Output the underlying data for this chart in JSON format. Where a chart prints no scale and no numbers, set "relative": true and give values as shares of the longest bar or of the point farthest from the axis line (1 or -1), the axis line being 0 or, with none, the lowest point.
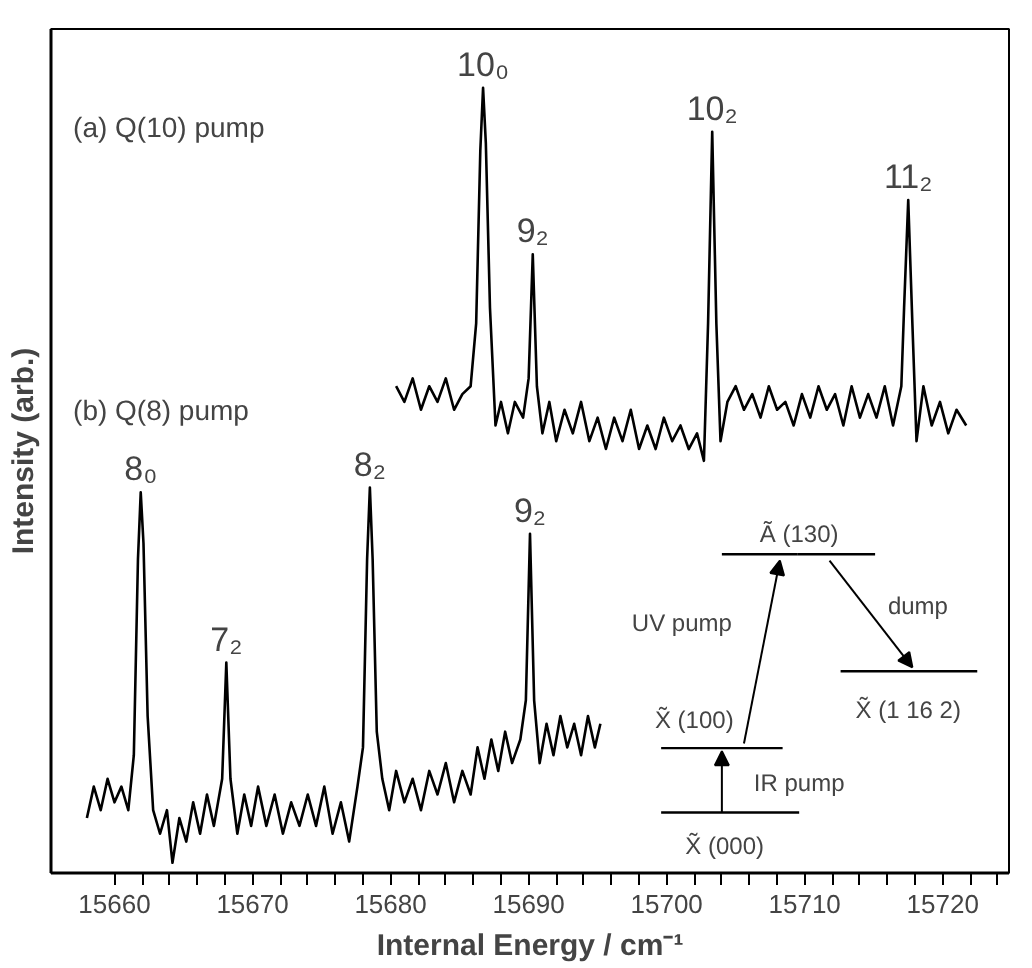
{
  "chart_data": {
    "type": "line",
    "relative": true,
    "xlabel": "Internal Energy / cm⁻¹",
    "ylabel": "Intensity (arb.)",
    "xlim": [
      15655.4,
      15724.8
    ],
    "xticks": [
      15660,
      {
        "value": 15662,
        "label": null
      },
      {
        "value": 15664,
        "label": null
      },
      {
        "value": 15666,
        "label": null
      },
      {
        "value": 15668,
        "label": null
      },
      15670,
      {
        "value": 15672,
        "label": null
      },
      {
        "value": 15674,
        "label": null
      },
      {
        "value": 15676,
        "label": null
      },
      {
        "value": 15678,
        "label": null
      },
      15680,
      {
        "value": 15682,
        "label": null
      },
      {
        "value": 15684,
        "label": null
      },
      {
        "value": 15686,
        "label": null
      },
      {
        "value": 15688,
        "label": null
      },
      15690,
      {
        "value": 15692,
        "label": null
      },
      {
        "value": 15694,
        "label": null
      },
      {
        "value": 15696,
        "label": null
      },
      {
        "value": 15698,
        "label": null
      },
      15700,
      {
        "value": 15702,
        "label": null
      },
      {
        "value": 15704,
        "label": null
      },
      {
        "value": 15706,
        "label": null
      },
      {
        "value": 15708,
        "label": null
      },
      15710,
      {
        "value": 15712,
        "label": null
      },
      {
        "value": 15714,
        "label": null
      },
      {
        "value": 15716,
        "label": null
      },
      {
        "value": 15718,
        "label": null
      },
      15720,
      {
        "value": 15722,
        "label": null
      },
      {
        "value": 15724,
        "label": null
      }
    ],
    "tick_labels": "x",
    "grid": false,
    "marker": "none",
    "line_style": "solid",
    "series": [
      {
        "color": "#000000",
        "x": [
          15680.4,
          15681,
          15681.6,
          15682.2,
          15682.8,
          15683.4,
          15684,
          15684.6,
          15685.2,
          15685.8,
          15686.2,
          15686.5,
          15686.7,
          15686.9,
          15687.2,
          15687.6,
          15688,
          15688.5,
          15689,
          15689.6,
          15690,
          15690.3,
          15690.6,
          15691,
          15691.5,
          15692,
          15692.6,
          15693.2,
          15693.8,
          15694.4,
          15695,
          15695.6,
          15696.2,
          15696.8,
          15697.4,
          15698,
          15698.6,
          15699.2,
          15699.8,
          15700.4,
          15701,
          15701.6,
          15702.2,
          15702.7,
          15703,
          15703.3,
          15703.6,
          15703.9,
          15704.4,
          15705,
          15705.6,
          15706.2,
          15706.8,
          15707.4,
          15708,
          15708.6,
          15709.2,
          15709.8,
          15710.4,
          15711,
          15711.6,
          15712.2,
          15712.8,
          15713.4,
          15714,
          15714.6,
          15715.2,
          15715.8,
          15716.4,
          15717,
          15717.2,
          15717.5,
          15717.8,
          15718.1,
          15718.6,
          15719.2,
          15719.8,
          15720.4,
          15721,
          15721.7
        ],
        "values": [
          0.62,
          0.6,
          0.63,
          0.59,
          0.62,
          0.6,
          0.63,
          0.59,
          0.61,
          0.62,
          0.7,
          0.92,
          1.0,
          0.93,
          0.72,
          0.57,
          0.6,
          0.56,
          0.6,
          0.58,
          0.63,
          0.788,
          0.62,
          0.56,
          0.6,
          0.55,
          0.59,
          0.56,
          0.6,
          0.55,
          0.58,
          0.54,
          0.58,
          0.55,
          0.59,
          0.54,
          0.57,
          0.54,
          0.58,
          0.55,
          0.57,
          0.54,
          0.56,
          0.525,
          0.7,
          0.944,
          0.7,
          0.55,
          0.6,
          0.62,
          0.59,
          0.61,
          0.58,
          0.62,
          0.59,
          0.6,
          0.57,
          0.61,
          0.58,
          0.62,
          0.59,
          0.61,
          0.57,
          0.62,
          0.58,
          0.61,
          0.58,
          0.62,
          0.57,
          0.62,
          0.72,
          0.857,
          0.7,
          0.55,
          0.62,
          0.57,
          0.6,
          0.56,
          0.59,
          0.57
        ]
      },
      {
        "color": "#000000",
        "x": [
          15658,
          15658.5,
          15659,
          15659.5,
          15660,
          15660.5,
          15661,
          15661.4,
          15661.7,
          15661.9,
          15662.1,
          15662.4,
          15662.8,
          15663.3,
          15663.8,
          15664.2,
          15664.7,
          15665.2,
          15665.7,
          15666.2,
          15666.7,
          15667.2,
          15667.8,
          15668.1,
          15668.4,
          15668.9,
          15669.4,
          15669.9,
          15670.4,
          15671,
          15671.6,
          15672.2,
          15672.8,
          15673.4,
          15674,
          15674.6,
          15675.2,
          15675.8,
          15676.4,
          15677,
          15677.6,
          15678,
          15678.3,
          15678.5,
          15678.7,
          15679,
          15679.4,
          15679.9,
          15680.4,
          15681,
          15681.6,
          15682.2,
          15682.8,
          15683.4,
          15684,
          15684.6,
          15685.2,
          15685.8,
          15686.3,
          15686.8,
          15687.3,
          15687.8,
          15688.3,
          15688.8,
          15689.4,
          15689.8,
          15690.1,
          15690.4,
          15690.8,
          15691.3,
          15691.8,
          15692.3,
          15692.8,
          15693.3,
          15693.8,
          15694.3,
          15694.8,
          15695.2
        ],
        "values": [
          0.07,
          0.11,
          0.08,
          0.12,
          0.09,
          0.11,
          0.08,
          0.15,
          0.4,
          0.485,
          0.42,
          0.2,
          0.08,
          0.05,
          0.08,
          0.013,
          0.07,
          0.04,
          0.09,
          0.05,
          0.1,
          0.06,
          0.12,
          0.268,
          0.12,
          0.05,
          0.1,
          0.06,
          0.11,
          0.06,
          0.1,
          0.05,
          0.09,
          0.06,
          0.1,
          0.06,
          0.11,
          0.05,
          0.09,
          0.04,
          0.11,
          0.16,
          0.4,
          0.491,
          0.4,
          0.18,
          0.12,
          0.08,
          0.13,
          0.09,
          0.12,
          0.08,
          0.13,
          0.1,
          0.14,
          0.09,
          0.13,
          0.1,
          0.16,
          0.12,
          0.17,
          0.13,
          0.18,
          0.14,
          0.17,
          0.22,
          0.432,
          0.22,
          0.14,
          0.19,
          0.15,
          0.2,
          0.16,
          0.19,
          0.15,
          0.2,
          0.16,
          0.19
        ]
      }
    ],
    "annotations": [
      {
        "text": "10₀",
        "x": 15686.7,
        "y": 1.0
      },
      {
        "text": "9₂",
        "x": 15690.3,
        "y": 0.788
      },
      {
        "text": "10₂",
        "x": 15703.3,
        "y": 0.944
      },
      {
        "text": "11₂",
        "x": 15717.5,
        "y": 0.857
      },
      {
        "text": "8₀",
        "x": 15661.9,
        "y": 0.485
      },
      {
        "text": "7₂",
        "x": 15668.1,
        "y": 0.268
      },
      {
        "text": "8₂",
        "x": 15678.5,
        "y": 0.491
      },
      {
        "text": "9₂",
        "x": 15690.1,
        "y": 0.432
      },
      "(a) Q(10) pump",
      "(b) Q(8) pump",
      "Ã (130)",
      "UV pump",
      "dump",
      "X̃ (100)",
      "IR pump",
      "X̃ (000)",
      "X̃ (1 16 2)"
    ]
  }
}
